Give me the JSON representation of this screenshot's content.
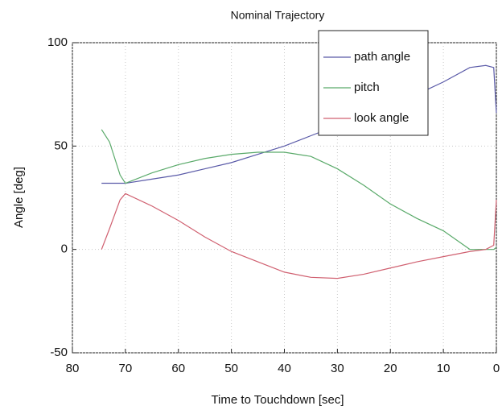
{
  "chart_data": {
    "type": "line",
    "title": "Nominal Trajectory",
    "xlabel": "Time to Touchdown [sec]",
    "ylabel": "Angle [deg]",
    "x": [
      74.5,
      73,
      71,
      70,
      65,
      60,
      55,
      50,
      45,
      40,
      35,
      30,
      25,
      20,
      15,
      10,
      5,
      2,
      0.5,
      0
    ],
    "series": [
      {
        "name": "path angle",
        "color": "#5a5aa8",
        "values": [
          32,
          32,
          32,
          32,
          34,
          36,
          39,
          42,
          46,
          50,
          55,
          60,
          65,
          70,
          75,
          81,
          88,
          89,
          88,
          66
        ]
      },
      {
        "name": "pitch",
        "color": "#5aaa6a",
        "values": [
          58,
          52,
          36,
          32,
          37,
          41,
          44,
          46,
          47,
          47,
          45,
          39,
          31,
          22,
          15,
          9,
          0,
          0,
          0,
          1
        ]
      },
      {
        "name": "look angle",
        "color": "#d06070",
        "values": [
          0,
          10,
          24,
          27,
          21,
          14,
          6,
          -1,
          -6,
          -11,
          -13.5,
          -14,
          -12,
          -9,
          -6,
          -3.5,
          -1,
          0,
          2,
          24
        ]
      }
    ],
    "xlim": [
      80,
      0
    ],
    "xticks": [
      80,
      70,
      60,
      50,
      40,
      30,
      20,
      10,
      0
    ],
    "ylim": [
      -50,
      100
    ],
    "yticks": [
      -50,
      0,
      50,
      100
    ],
    "grid": true,
    "legend": "upper right"
  }
}
